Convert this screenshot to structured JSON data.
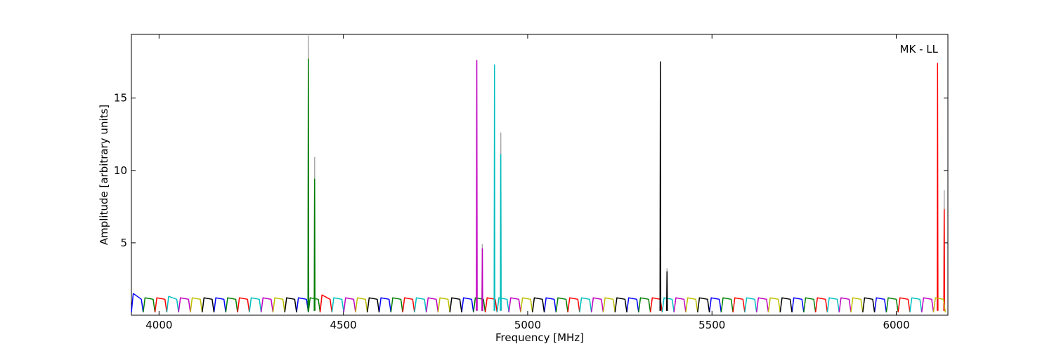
{
  "chart_data": {
    "type": "line",
    "xlabel": "Frequency [MHz]",
    "ylabel": "Amplitude [arbitrary units]",
    "annotation": "MK - LL",
    "xlim": [
      3925,
      6140
    ],
    "ylim": [
      0,
      19.4
    ],
    "xticks": [
      4000,
      4500,
      5000,
      5500,
      6000
    ],
    "yticks": [
      5,
      10,
      15
    ],
    "series": [
      {
        "color": "#aaaaaa",
        "x": [
          4404,
          4405,
          4406,
          null,
          4421,
          4422,
          4423,
          null,
          4876,
          4877,
          4878,
          null,
          4926,
          4927,
          4928,
          null,
          5377,
          5378,
          5379,
          null,
          6129,
          6130,
          6131
        ],
        "values": [
          0.3,
          19.3,
          0.3,
          null,
          0.3,
          10.9,
          0.3,
          null,
          0.3,
          4.9,
          0.3,
          null,
          0.3,
          12.6,
          0.3,
          null,
          0.3,
          3.2,
          0.3,
          null,
          0.3,
          8.6,
          0.3
        ]
      },
      {
        "color": "#0000ff",
        "x": [
          3925,
          3930,
          3952,
          3957,
          null,
          4149,
          4154,
          4176,
          4181,
          null,
          4373,
          4378,
          4400,
          4405,
          null,
          4597,
          4602,
          4624,
          4629,
          null,
          4821,
          4826,
          4848,
          4853,
          null,
          5045,
          5050,
          5072,
          5077,
          null,
          5269,
          5274,
          5296,
          5301,
          null,
          5493,
          5498,
          5520,
          5525,
          null,
          5717,
          5722,
          5744,
          5749,
          null,
          5941,
          5946,
          5968,
          5973
        ],
        "values": [
          0.2,
          1.5,
          1.1,
          0.2,
          null,
          0.2,
          1.2,
          1.1,
          0.2,
          null,
          0.2,
          1.2,
          1.1,
          0.2,
          null,
          0.2,
          1.2,
          1.1,
          0.2,
          null,
          0.2,
          1.2,
          1.1,
          0.2,
          null,
          0.2,
          1.2,
          1.1,
          0.2,
          null,
          0.2,
          1.2,
          1.1,
          0.2,
          null,
          0.2,
          1.2,
          1.1,
          0.2,
          null,
          0.2,
          1.2,
          1.1,
          0.2,
          null,
          0.2,
          1.2,
          1.1,
          0.2
        ]
      },
      {
        "color": "#007f00",
        "x": [
          3957,
          3962,
          3984,
          3989,
          null,
          4181,
          4186,
          4208,
          4213,
          null,
          4405,
          4410,
          4432,
          4437,
          null,
          4629,
          4634,
          4656,
          4661,
          null,
          4853,
          4858,
          4880,
          4885,
          null,
          5077,
          5082,
          5104,
          5109,
          null,
          5301,
          5306,
          5328,
          5333,
          null,
          5525,
          5530,
          5552,
          5557,
          null,
          5749,
          5754,
          5776,
          5781,
          null,
          5973,
          5978,
          6000,
          6005,
          null,
          4404,
          4405,
          4406,
          null,
          4421,
          4422,
          4423
        ],
        "values": [
          0.2,
          1.2,
          1.1,
          0.2,
          null,
          0.2,
          1.2,
          1.1,
          0.2,
          null,
          0.2,
          1.2,
          1.1,
          0.2,
          null,
          0.2,
          1.2,
          1.1,
          0.2,
          null,
          0.2,
          1.2,
          1.1,
          0.2,
          null,
          0.2,
          1.2,
          1.1,
          0.2,
          null,
          0.2,
          1.2,
          1.1,
          0.2,
          null,
          0.2,
          1.2,
          1.1,
          0.2,
          null,
          0.2,
          1.2,
          1.1,
          0.2,
          null,
          0.2,
          1.2,
          1.1,
          0.2,
          null,
          0.3,
          17.7,
          0.3,
          null,
          0.3,
          9.4,
          0.3
        ]
      },
      {
        "color": "#ff0000",
        "x": [
          3989,
          3994,
          4016,
          4021,
          null,
          4213,
          4218,
          4240,
          4245,
          null,
          4437,
          4442,
          4464,
          4469,
          null,
          4661,
          4666,
          4688,
          4693,
          null,
          4885,
          4890,
          4912,
          4917,
          null,
          5109,
          5114,
          5136,
          5141,
          null,
          5333,
          5338,
          5360,
          5365,
          null,
          5557,
          5562,
          5584,
          5589,
          null,
          5781,
          5786,
          5808,
          5813,
          null,
          6005,
          6010,
          6032,
          6037,
          null,
          6111,
          6112,
          6113,
          null,
          6129,
          6130,
          6131
        ],
        "values": [
          0.2,
          1.2,
          1.1,
          0.2,
          null,
          0.2,
          1.2,
          1.1,
          0.2,
          null,
          0.2,
          1.4,
          1.1,
          0.2,
          null,
          0.2,
          1.2,
          1.1,
          0.2,
          null,
          0.2,
          1.2,
          1.1,
          0.2,
          null,
          0.2,
          1.2,
          1.1,
          0.2,
          null,
          0.2,
          1.2,
          1.1,
          0.2,
          null,
          0.2,
          1.2,
          1.1,
          0.2,
          null,
          0.2,
          1.2,
          1.1,
          0.2,
          null,
          0.2,
          1.2,
          1.1,
          0.2,
          null,
          0.3,
          17.4,
          0.3,
          null,
          0.3,
          7.3,
          0.3
        ]
      },
      {
        "color": "#00bfbf",
        "x": [
          4021,
          4026,
          4048,
          4053,
          null,
          4245,
          4250,
          4272,
          4277,
          null,
          4469,
          4474,
          4496,
          4501,
          null,
          4693,
          4698,
          4720,
          4725,
          null,
          4917,
          4922,
          4944,
          4949,
          null,
          5141,
          5146,
          5168,
          5173,
          null,
          5365,
          5370,
          5392,
          5397,
          null,
          5589,
          5594,
          5616,
          5621,
          null,
          5813,
          5818,
          5840,
          5845,
          null,
          6037,
          6042,
          6064,
          6069,
          null,
          4909,
          4910,
          4911,
          null,
          4926,
          4927,
          4928
        ],
        "values": [
          0.2,
          1.3,
          1.1,
          0.2,
          null,
          0.2,
          1.2,
          1.1,
          0.2,
          null,
          0.2,
          1.2,
          1.1,
          0.2,
          null,
          0.2,
          1.2,
          1.1,
          0.2,
          null,
          0.2,
          1.2,
          1.1,
          0.2,
          null,
          0.2,
          1.2,
          1.1,
          0.2,
          null,
          0.2,
          1.2,
          1.1,
          0.2,
          null,
          0.2,
          1.2,
          1.1,
          0.2,
          null,
          0.2,
          1.2,
          1.1,
          0.2,
          null,
          0.2,
          1.2,
          1.1,
          0.2,
          null,
          0.3,
          17.3,
          0.3,
          null,
          0.3,
          11.1,
          0.3
        ]
      },
      {
        "color": "#bf00bf",
        "x": [
          4053,
          4058,
          4080,
          4085,
          null,
          4277,
          4282,
          4304,
          4309,
          null,
          4501,
          4506,
          4528,
          4533,
          null,
          4725,
          4730,
          4752,
          4757,
          null,
          4949,
          4954,
          4976,
          4981,
          null,
          5173,
          5178,
          5200,
          5205,
          null,
          5397,
          5402,
          5424,
          5429,
          null,
          5621,
          5626,
          5648,
          5653,
          null,
          5845,
          5850,
          5872,
          5877,
          null,
          6069,
          6074,
          6096,
          6101,
          null,
          4861,
          4862,
          4863,
          null,
          4876,
          4877,
          4878
        ],
        "values": [
          0.2,
          1.2,
          1.1,
          0.2,
          null,
          0.2,
          1.2,
          1.1,
          0.2,
          null,
          0.2,
          1.2,
          1.1,
          0.2,
          null,
          0.2,
          1.2,
          1.1,
          0.2,
          null,
          0.2,
          1.2,
          1.1,
          0.2,
          null,
          0.2,
          1.2,
          1.1,
          0.2,
          null,
          0.2,
          1.2,
          1.1,
          0.2,
          null,
          0.2,
          1.2,
          1.1,
          0.2,
          null,
          0.2,
          1.2,
          1.1,
          0.2,
          null,
          0.2,
          1.2,
          1.1,
          0.2,
          null,
          0.3,
          17.6,
          0.3,
          null,
          0.3,
          4.6,
          0.3
        ]
      },
      {
        "color": "#bfbf00",
        "x": [
          4085,
          4090,
          4112,
          4117,
          null,
          4309,
          4314,
          4336,
          4341,
          null,
          4533,
          4538,
          4560,
          4565,
          null,
          4757,
          4762,
          4784,
          4789,
          null,
          4981,
          4986,
          5008,
          5013,
          null,
          5205,
          5210,
          5232,
          5237,
          null,
          5429,
          5434,
          5456,
          5461,
          null,
          5653,
          5658,
          5680,
          5685,
          null,
          5877,
          5882,
          5904,
          5909,
          null,
          6101,
          6106,
          6128,
          6133
        ],
        "values": [
          0.2,
          1.2,
          1.1,
          0.2,
          null,
          0.2,
          1.2,
          1.1,
          0.2,
          null,
          0.2,
          1.2,
          1.1,
          0.2,
          null,
          0.2,
          1.2,
          1.1,
          0.2,
          null,
          0.2,
          1.2,
          1.1,
          0.2,
          null,
          0.2,
          1.2,
          1.1,
          0.2,
          null,
          0.2,
          1.2,
          1.1,
          0.2,
          null,
          0.2,
          1.2,
          1.1,
          0.2,
          null,
          0.2,
          1.2,
          1.1,
          0.2,
          null,
          0.2,
          1.2,
          1.1,
          0.2
        ]
      },
      {
        "color": "#000000",
        "x": [
          4117,
          4122,
          4144,
          4149,
          null,
          4341,
          4346,
          4368,
          4373,
          null,
          4565,
          4570,
          4592,
          4597,
          null,
          4789,
          4794,
          4816,
          4821,
          null,
          5013,
          5018,
          5040,
          5045,
          null,
          5237,
          5242,
          5264,
          5269,
          null,
          5461,
          5466,
          5488,
          5493,
          null,
          5685,
          5690,
          5712,
          5717,
          null,
          5909,
          5914,
          5936,
          5941,
          null,
          5359,
          5360,
          5361,
          null,
          5377,
          5378,
          5379
        ],
        "values": [
          0.2,
          1.2,
          1.1,
          0.2,
          null,
          0.2,
          1.2,
          1.1,
          0.2,
          null,
          0.2,
          1.2,
          1.1,
          0.2,
          null,
          0.2,
          1.2,
          1.1,
          0.2,
          null,
          0.2,
          1.2,
          1.1,
          0.2,
          null,
          0.2,
          1.2,
          1.1,
          0.2,
          null,
          0.2,
          1.2,
          1.1,
          0.2,
          null,
          0.2,
          1.2,
          1.1,
          0.2,
          null,
          0.2,
          1.2,
          1.1,
          0.2,
          null,
          0.3,
          17.5,
          0.3,
          null,
          0.3,
          3.0,
          0.3
        ]
      }
    ]
  }
}
